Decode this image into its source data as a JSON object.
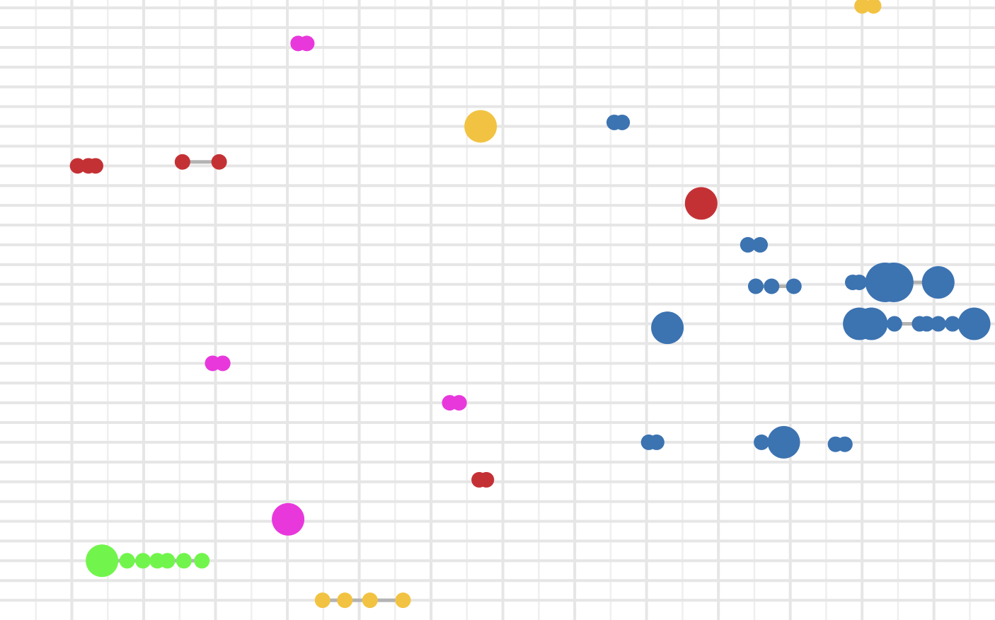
{
  "chart_data": {
    "type": "scatter",
    "title": "",
    "xlabel": "",
    "ylabel": "",
    "grid": true,
    "legend": "none",
    "xlim": [
      0,
      13.85
    ],
    "ylim": [
      0,
      15.7
    ],
    "colors": {
      "grid_major": "#e6e6e6",
      "grid_minor": "#efefef",
      "connector": "#b3b3b3",
      "red": "#c43135",
      "blue": "#3c73b1",
      "yellow": "#f2c342",
      "magenta": "#e838dc",
      "green": "#71f54c"
    },
    "series": [
      {
        "color_key": "red",
        "groups": [
          {
            "y": 11.5,
            "points": [
              {
                "x": 1.08,
                "s": 1
              },
              {
                "x": 1.23,
                "s": 1
              },
              {
                "x": 1.33,
                "s": 1
              }
            ]
          },
          {
            "y": 11.6,
            "points": [
              {
                "x": 2.54,
                "s": 1
              },
              {
                "x": 3.05,
                "s": 1
              }
            ]
          },
          {
            "y": 10.55,
            "points": [
              {
                "x": 9.76,
                "s": 2
              }
            ]
          },
          {
            "y": 3.55,
            "points": [
              {
                "x": 6.67,
                "s": 1
              },
              {
                "x": 6.77,
                "s": 1
              }
            ]
          }
        ]
      },
      {
        "color_key": "blue",
        "groups": [
          {
            "y": 12.6,
            "points": [
              {
                "x": 8.55,
                "s": 1
              },
              {
                "x": 8.66,
                "s": 1
              }
            ]
          },
          {
            "y": 9.5,
            "points": [
              {
                "x": 10.41,
                "s": 1
              },
              {
                "x": 10.58,
                "s": 1
              }
            ]
          },
          {
            "y": 8.45,
            "points": [
              {
                "x": 10.52,
                "s": 1
              },
              {
                "x": 10.74,
                "s": 1
              },
              {
                "x": 11.05,
                "s": 1
              }
            ]
          },
          {
            "y": 8.55,
            "points": [
              {
                "x": 11.87,
                "s": 1
              },
              {
                "x": 11.96,
                "s": 1
              },
              {
                "x": 12.32,
                "s": 3
              },
              {
                "x": 12.44,
                "s": 3
              },
              {
                "x": 13.06,
                "s": 2
              }
            ]
          },
          {
            "y": 7.5,
            "points": [
              {
                "x": 11.96,
                "s": 2
              },
              {
                "x": 12.13,
                "s": 2
              },
              {
                "x": 12.45,
                "s": 1
              },
              {
                "x": 12.8,
                "s": 1
              },
              {
                "x": 12.9,
                "s": 1
              },
              {
                "x": 13.06,
                "s": 1
              },
              {
                "x": 13.26,
                "s": 1
              },
              {
                "x": 13.56,
                "s": 2
              }
            ]
          },
          {
            "y": 7.4,
            "points": [
              {
                "x": 9.29,
                "s": 2
              }
            ]
          },
          {
            "y": 4.5,
            "points": [
              {
                "x": 9.03,
                "s": 1
              },
              {
                "x": 9.14,
                "s": 1
              }
            ]
          },
          {
            "y": 4.5,
            "points": [
              {
                "x": 10.6,
                "s": 1
              },
              {
                "x": 10.91,
                "s": 2
              }
            ]
          },
          {
            "y": 4.45,
            "points": [
              {
                "x": 11.63,
                "s": 1
              },
              {
                "x": 11.76,
                "s": 1
              }
            ]
          }
        ]
      },
      {
        "color_key": "yellow",
        "groups": [
          {
            "y": 15.55,
            "points": [
              {
                "x": 12.0,
                "s": 1
              },
              {
                "x": 12.16,
                "s": 1
              }
            ]
          },
          {
            "y": 12.5,
            "points": [
              {
                "x": 6.69,
                "s": 2
              }
            ]
          },
          {
            "y": 0.5,
            "points": [
              {
                "x": 4.49,
                "s": 1
              },
              {
                "x": 4.8,
                "s": 1
              },
              {
                "x": 5.15,
                "s": 1
              },
              {
                "x": 5.61,
                "s": 1
              }
            ]
          }
        ]
      },
      {
        "color_key": "magenta",
        "groups": [
          {
            "y": 14.6,
            "points": [
              {
                "x": 4.15,
                "s": 1
              },
              {
                "x": 4.27,
                "s": 1
              }
            ]
          },
          {
            "y": 6.5,
            "points": [
              {
                "x": 2.96,
                "s": 1
              },
              {
                "x": 3.1,
                "s": 1
              }
            ]
          },
          {
            "y": 5.5,
            "points": [
              {
                "x": 6.26,
                "s": 1
              },
              {
                "x": 6.39,
                "s": 1
              }
            ]
          },
          {
            "y": 2.55,
            "points": [
              {
                "x": 4.01,
                "s": 2
              }
            ]
          }
        ]
      },
      {
        "color_key": "green",
        "groups": [
          {
            "y": 1.5,
            "points": [
              {
                "x": 1.42,
                "s": 2
              },
              {
                "x": 1.77,
                "s": 1
              },
              {
                "x": 1.99,
                "s": 1
              },
              {
                "x": 2.19,
                "s": 1
              },
              {
                "x": 2.33,
                "s": 1
              },
              {
                "x": 2.56,
                "s": 1
              },
              {
                "x": 2.81,
                "s": 1
              }
            ]
          }
        ]
      }
    ]
  }
}
